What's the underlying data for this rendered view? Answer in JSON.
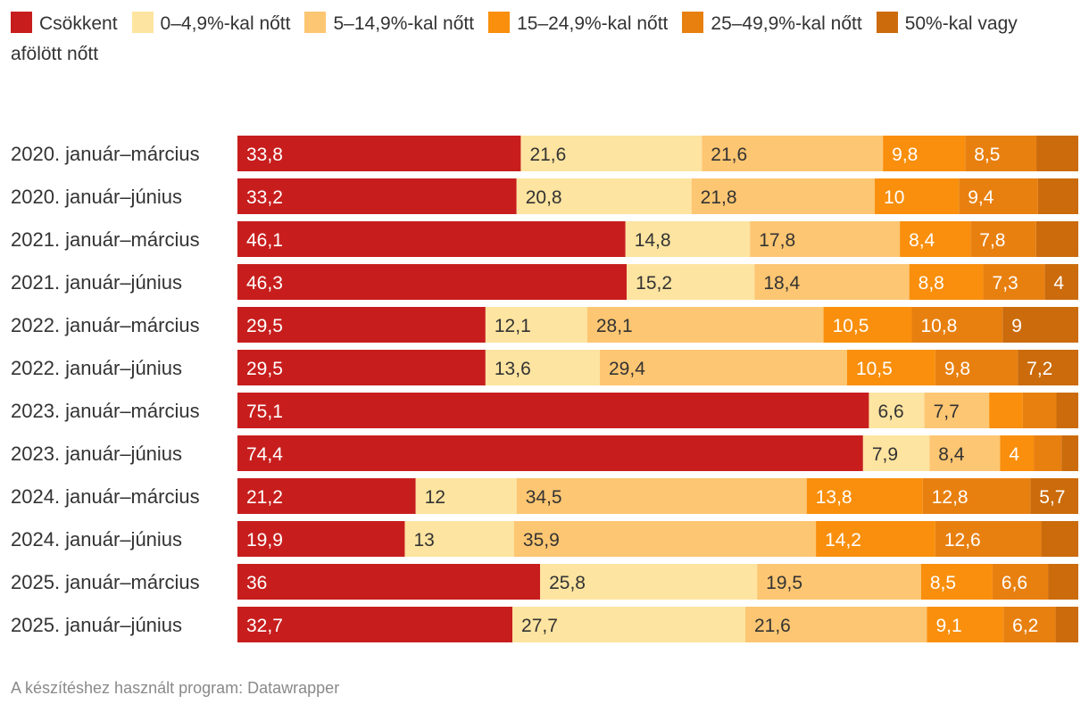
{
  "chart_data": {
    "type": "bar",
    "orientation": "horizontal",
    "stacked": true,
    "normalized": true,
    "categories": [
      "2020. január–március",
      "2020. január–június",
      "2021. január–március",
      "2021. január–június",
      "2022. január–március",
      "2022. január–június",
      "2023. január–március",
      "2023. január–június",
      "2024. január–március",
      "2024. január–június",
      "2025. január–március",
      "2025. január–június"
    ],
    "series": [
      {
        "name": "Csökkent",
        "color": "#c71e1d",
        "values": [
          33.8,
          33.2,
          46.1,
          46.3,
          29.5,
          29.5,
          75.1,
          74.4,
          21.2,
          19.9,
          36,
          32.7
        ]
      },
      {
        "name": "0–4,9%-kal nőtt",
        "color": "#fde4a0",
        "values": [
          21.6,
          20.8,
          14.8,
          15.2,
          12.1,
          13.6,
          6.6,
          7.9,
          12,
          13,
          25.8,
          27.7
        ]
      },
      {
        "name": "5–14,9%-kal nőtt",
        "color": "#fdc672",
        "values": [
          21.6,
          21.8,
          17.8,
          18.4,
          28.1,
          29.4,
          7.7,
          8.4,
          34.5,
          35.9,
          19.5,
          21.6
        ]
      },
      {
        "name": "15–24,9%-kal nőtt",
        "color": "#f98f0c",
        "values": [
          9.8,
          10,
          8.4,
          8.8,
          10.5,
          10.5,
          4.0,
          4,
          13.8,
          14.2,
          8.5,
          9.1
        ]
      },
      {
        "name": "25–49,9%-kal nőtt",
        "color": "#e88010",
        "values": [
          8.5,
          9.4,
          7.8,
          7.3,
          10.8,
          9.8,
          4.0,
          3.3,
          12.8,
          12.6,
          6.6,
          6.2
        ]
      },
      {
        "name": "50%-kal vagy afölött nőtt",
        "color": "#cb6b0b",
        "values": [
          5.0,
          4.8,
          5.0,
          4,
          9,
          7.2,
          2.6,
          2.0,
          5.7,
          4.4,
          3.6,
          2.7
        ]
      }
    ],
    "value_labels": [
      [
        "33,8",
        "21,6",
        "21,6",
        "9,8",
        "8,5",
        ""
      ],
      [
        "33,2",
        "20,8",
        "21,8",
        "10",
        "9,4",
        ""
      ],
      [
        "46,1",
        "14,8",
        "17,8",
        "8,4",
        "7,8",
        ""
      ],
      [
        "46,3",
        "15,2",
        "18,4",
        "8,8",
        "7,3",
        "4"
      ],
      [
        "29,5",
        "12,1",
        "28,1",
        "10,5",
        "10,8",
        "9"
      ],
      [
        "29,5",
        "13,6",
        "29,4",
        "10,5",
        "9,8",
        "7,2"
      ],
      [
        "75,1",
        "6,6",
        "7,7",
        "",
        "",
        ""
      ],
      [
        "74,4",
        "7,9",
        "8,4",
        "4",
        "",
        ""
      ],
      [
        "21,2",
        "12",
        "34,5",
        "13,8",
        "12,8",
        "5,7"
      ],
      [
        "19,9",
        "13",
        "35,9",
        "14,2",
        "12,6",
        ""
      ],
      [
        "36",
        "25,8",
        "19,5",
        "8,5",
        "6,6",
        ""
      ],
      [
        "32,7",
        "27,7",
        "21,6",
        "9,1",
        "6,2",
        ""
      ]
    ],
    "label_colors": [
      "#ffffff",
      "#333333",
      "#333333",
      "#ffffff",
      "#ffffff",
      "#ffffff"
    ],
    "xlim": [
      0,
      100
    ],
    "legend_position": "top",
    "credit": "A készítéshez használt program: Datawrapper"
  }
}
